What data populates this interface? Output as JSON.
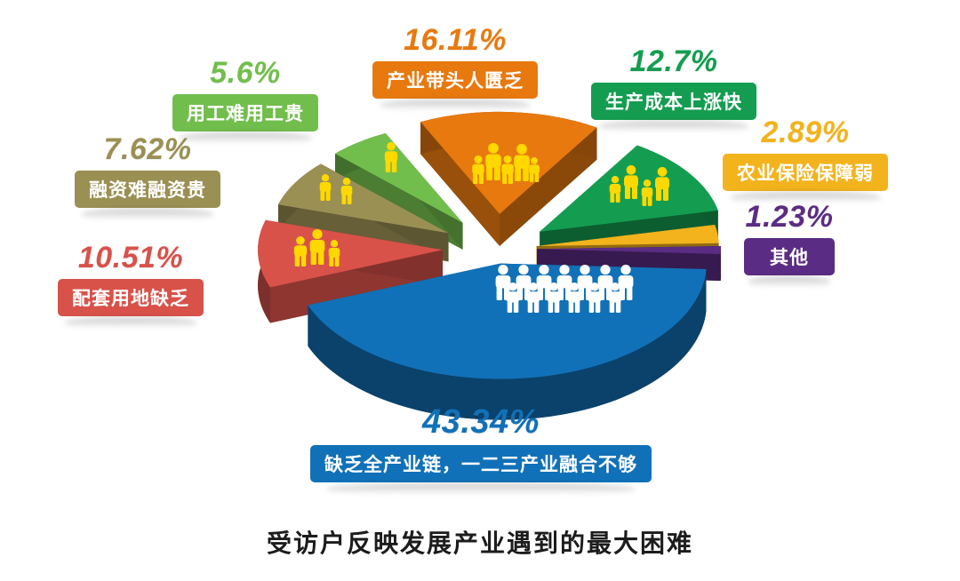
{
  "title": "受访户反映发展产业遇到的最大困难",
  "chart_data": {
    "type": "pie",
    "style": "3d-exploded",
    "title": "受访户反映发展产业遇到的最大困难",
    "unit": "%",
    "total": 100,
    "slices": [
      {
        "id": "full-industry-chain-lacking",
        "label": "缺乏全产业链，一二三产业融合不够",
        "pct_label": "43.34%",
        "value": 43.34,
        "color": "#1171B8",
        "people": 13,
        "people_color": "#ffffff"
      },
      {
        "id": "industry-leader-shortage",
        "label": "产业带头人匮乏",
        "pct_label": "16.11%",
        "value": 16.11,
        "color": "#E8790F",
        "people": 5,
        "people_color": "#FFD800"
      },
      {
        "id": "production-cost-rising",
        "label": "生产成本上涨快",
        "pct_label": "12.7%",
        "value": 12.7,
        "color": "#149D50",
        "people": 4,
        "people_color": "#FFD800"
      },
      {
        "id": "supporting-land-shortage",
        "label": "配套用地缺乏",
        "pct_label": "10.51%",
        "value": 10.51,
        "color": "#D8524A",
        "people": 3,
        "people_color": "#FFD800"
      },
      {
        "id": "financing-difficulty",
        "label": "融资难融资贵",
        "pct_label": "7.62%",
        "value": 7.62,
        "color": "#9B9054",
        "people": 2,
        "people_color": "#FFD800"
      },
      {
        "id": "labor-difficulty",
        "label": "用工难用工贵",
        "pct_label": "5.6%",
        "value": 5.6,
        "color": "#72BE4D",
        "people": 1,
        "people_color": "#FFD800"
      },
      {
        "id": "agriculture-insurance-weak",
        "label": "农业保险保障弱",
        "pct_label": "2.89%",
        "value": 2.89,
        "color": "#F2B31C",
        "people": 0,
        "people_color": null
      },
      {
        "id": "other",
        "label": "其他",
        "pct_label": "1.23%",
        "value": 1.23,
        "color": "#5B2C84",
        "people": 0,
        "people_color": null
      }
    ]
  }
}
